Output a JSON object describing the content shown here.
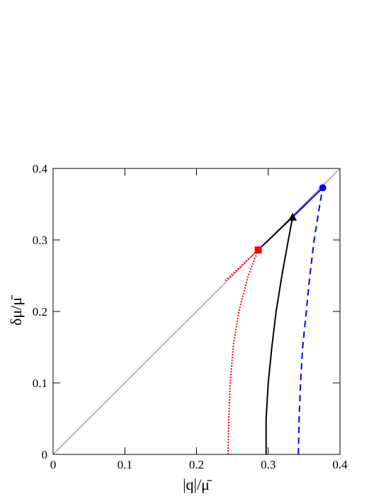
{
  "chart_data": {
    "type": "line",
    "xlabel": "|q|/μ̄",
    "ylabel": "δμ/μ̄",
    "xlim": [
      0,
      0.4
    ],
    "ylim": [
      0,
      0.4
    ],
    "xticks": [
      0,
      0.1,
      0.2,
      0.3,
      0.4
    ],
    "yticks": [
      0,
      0.1,
      0.2,
      0.3,
      0.4
    ],
    "series": [
      {
        "color": "#555555",
        "dash": "solid",
        "x": [
          0,
          0.4
        ],
        "values": [
          0,
          0.4
        ]
      },
      {
        "color": "#ff0000",
        "dash": "dotted",
        "x": [
          0.244,
          0.245,
          0.247,
          0.251,
          0.259,
          0.272,
          0.286
        ],
        "values": [
          0,
          0.05,
          0.1,
          0.15,
          0.2,
          0.25,
          0.286
        ]
      },
      {
        "color": "#ff0000",
        "dash": "dotted",
        "x": [
          0.24,
          0.286
        ],
        "values": [
          0.243,
          0.286
        ]
      },
      {
        "color": "#000000",
        "dash": "solid",
        "x": [
          0.297,
          0.297,
          0.3,
          0.305,
          0.311,
          0.319,
          0.328,
          0.334
        ],
        "values": [
          0,
          0.05,
          0.1,
          0.15,
          0.2,
          0.25,
          0.3,
          0.332
        ]
      },
      {
        "color": "#000000",
        "dash": "solid",
        "x": [
          0.286,
          0.334
        ],
        "values": [
          0.286,
          0.332
        ]
      },
      {
        "color": "#0000ff",
        "dash": "dashed",
        "x": [
          0.342,
          0.343,
          0.345,
          0.348,
          0.353,
          0.358,
          0.364,
          0.372,
          0.376
        ],
        "values": [
          0,
          0.05,
          0.1,
          0.15,
          0.2,
          0.25,
          0.3,
          0.35,
          0.373
        ]
      },
      {
        "color": "#0000ff",
        "dash": "solid",
        "x": [
          0.334,
          0.376
        ],
        "values": [
          0.332,
          0.373
        ]
      },
      {
        "color": "#ff0000",
        "marker": "square",
        "x": [
          0.286
        ],
        "values": [
          0.286
        ]
      },
      {
        "color": "#000000",
        "marker": "triangle",
        "x": [
          0.334
        ],
        "values": [
          0.332
        ]
      },
      {
        "color": "#0000ff",
        "marker": "circle",
        "x": [
          0.376
        ],
        "values": [
          0.373
        ]
      }
    ]
  }
}
